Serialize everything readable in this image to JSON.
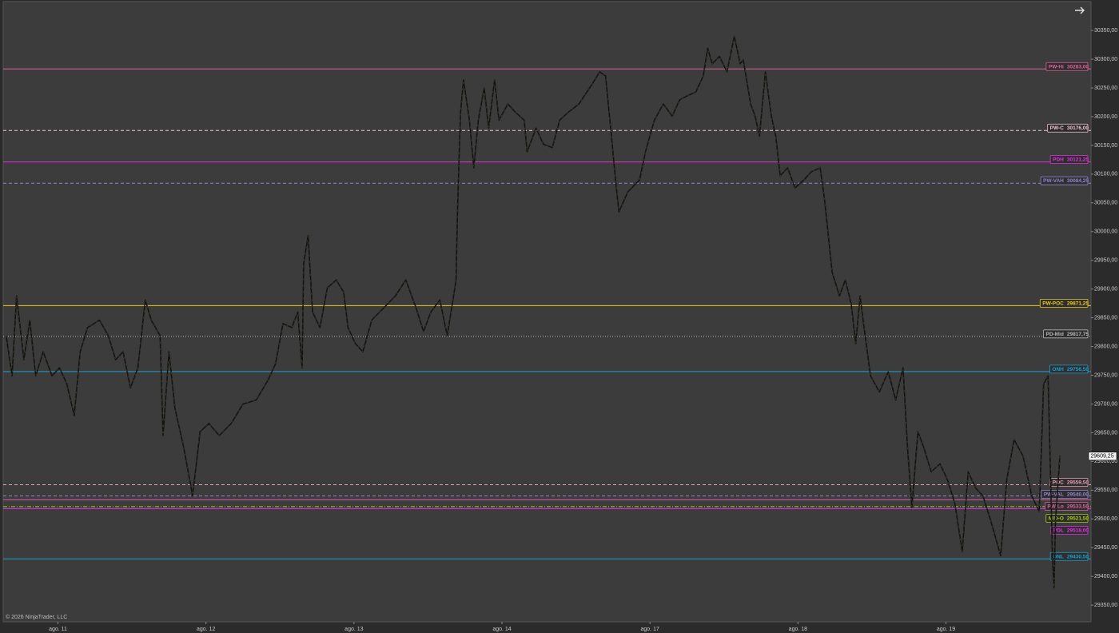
{
  "chart_data": {
    "type": "line",
    "copyright": "© 2026 NinjaTrader, LLC",
    "xlim": [
      -0.37,
      6.98
    ],
    "xticks": [
      {
        "value": 0,
        "label": "ago. 11"
      },
      {
        "value": 1,
        "label": "ago. 12"
      },
      {
        "value": 2,
        "label": "ago. 13"
      },
      {
        "value": 3,
        "label": "ago. 14"
      },
      {
        "value": 4,
        "label": "ago. 17"
      },
      {
        "value": 5,
        "label": "ago. 18"
      },
      {
        "value": 6,
        "label": "ago. 19"
      }
    ],
    "ylim": [
      29321,
      30403
    ],
    "yticks": [
      {
        "value": 29350,
        "label": "29350,00"
      },
      {
        "value": 29400,
        "label": "29400,00"
      },
      {
        "value": 29450,
        "label": "29450,00"
      },
      {
        "value": 29500,
        "label": "29500,00"
      },
      {
        "value": 29550,
        "label": "29550,00"
      },
      {
        "value": 29600,
        "label": "29600,00"
      },
      {
        "value": 29650,
        "label": "29650,00"
      },
      {
        "value": 29700,
        "label": "29700,00"
      },
      {
        "value": 29750,
        "label": "29750,00"
      },
      {
        "value": 29800,
        "label": "29800,00"
      },
      {
        "value": 29850,
        "label": "29850,00"
      },
      {
        "value": 29900,
        "label": "29900,00"
      },
      {
        "value": 29950,
        "label": "29950,00"
      },
      {
        "value": 30000,
        "label": "30000,00"
      },
      {
        "value": 30050,
        "label": "30050,00"
      },
      {
        "value": 30100,
        "label": "30100,00"
      },
      {
        "value": 30150,
        "label": "30150,00"
      },
      {
        "value": 30200,
        "label": "30200,00"
      },
      {
        "value": 30250,
        "label": "30250,00"
      },
      {
        "value": 30300,
        "label": "30300,00"
      },
      {
        "value": 30350,
        "label": "30350,00"
      }
    ],
    "grid": false,
    "series": [
      {
        "color": "#141414",
        "x": [
          -0.35,
          -0.31,
          -0.28,
          -0.23,
          -0.19,
          -0.15,
          -0.1,
          -0.04,
          0.01,
          0.06,
          0.11,
          0.15,
          0.2,
          0.28,
          0.34,
          0.39,
          0.44,
          0.49,
          0.54,
          0.59,
          0.63,
          0.69,
          0.71,
          0.75,
          0.79,
          0.85,
          0.91,
          0.96,
          1.02,
          1.09,
          1.17,
          1.25,
          1.34,
          1.42,
          1.47,
          1.52,
          1.58,
          1.62,
          1.65,
          1.66,
          1.69,
          1.72,
          1.77,
          1.82,
          1.88,
          1.93,
          1.96,
          2.01,
          2.06,
          2.12,
          2.2,
          2.28,
          2.35,
          2.42,
          2.47,
          2.52,
          2.58,
          2.63,
          2.66,
          2.69,
          2.7,
          2.71,
          2.72,
          2.74,
          2.78,
          2.81,
          2.84,
          2.88,
          2.91,
          2.95,
          2.98,
          3.04,
          3.09,
          3.15,
          3.17,
          3.23,
          3.28,
          3.34,
          3.39,
          3.45,
          3.52,
          3.61,
          3.66,
          3.7,
          3.74,
          3.77,
          3.79,
          3.85,
          3.93,
          3.97,
          4.03,
          4.09,
          4.15,
          4.2,
          4.25,
          4.31,
          4.36,
          4.39,
          4.42,
          4.47,
          4.52,
          4.57,
          4.61,
          4.63,
          4.68,
          4.71,
          4.74,
          4.78,
          4.82,
          4.85,
          4.88,
          4.93,
          4.98,
          5.04,
          5.09,
          5.15,
          5.18,
          5.23,
          5.28,
          5.32,
          5.36,
          5.39,
          5.42,
          5.44,
          5.49,
          5.55,
          5.61,
          5.66,
          5.71,
          5.74,
          5.77,
          5.81,
          5.85,
          5.9,
          5.96,
          6.01,
          6.06,
          6.11,
          6.15,
          6.2,
          6.25,
          6.3,
          6.37,
          6.41,
          6.46,
          6.52,
          6.58,
          6.63,
          6.66,
          6.69,
          6.72,
          6.73,
          6.74,
          6.77
        ],
        "values": [
          29819,
          29749,
          29888,
          29777,
          29846,
          29749,
          29791,
          29749,
          29763,
          29735,
          29680,
          29791,
          29833,
          29846,
          29819,
          29777,
          29791,
          29728,
          29763,
          29881,
          29846,
          29819,
          29645,
          29791,
          29693,
          29624,
          29540,
          29652,
          29666,
          29645,
          29666,
          29700,
          29707,
          29742,
          29770,
          29840,
          29833,
          29860,
          29763,
          29944,
          29993,
          29860,
          29833,
          29902,
          29916,
          29895,
          29833,
          29805,
          29791,
          29846,
          29867,
          29888,
          29916,
          29867,
          29826,
          29860,
          29881,
          29819,
          29867,
          29916,
          30041,
          30125,
          30208,
          30264,
          30194,
          30111,
          30194,
          30250,
          30180,
          30264,
          30194,
          30222,
          30208,
          30194,
          30139,
          30180,
          30152,
          30146,
          30194,
          30208,
          30222,
          30257,
          30278,
          30271,
          30166,
          30083,
          30034,
          30069,
          30090,
          30139,
          30194,
          30222,
          30201,
          30229,
          30236,
          30243,
          30271,
          30319,
          30292,
          30305,
          30278,
          30340,
          30292,
          30299,
          30222,
          30201,
          30166,
          30278,
          30201,
          30166,
          30097,
          30111,
          30076,
          30090,
          30104,
          30111,
          30055,
          29930,
          29888,
          29916,
          29874,
          29805,
          29888,
          29846,
          29749,
          29721,
          29756,
          29707,
          29763,
          29624,
          29520,
          29652,
          29624,
          29582,
          29596,
          29568,
          29527,
          29443,
          29582,
          29554,
          29540,
          29499,
          29436,
          29568,
          29638,
          29610,
          29540,
          29513,
          29735,
          29749,
          29429,
          29380,
          29499,
          29610
        ]
      }
    ],
    "last_price": {
      "value": 29609.25,
      "label": "29609,25"
    },
    "levels": [
      {
        "name": "PW-Hi",
        "value": 30283,
        "label": "30283,00",
        "color": "#e0609c",
        "dash": "solid"
      },
      {
        "name": "PW-C",
        "value": 30176,
        "label": "30176,00",
        "color": "#f0c4d4",
        "dash": "dashed"
      },
      {
        "name": "PDH",
        "value": 30121.25,
        "label": "30121,25",
        "color": "#e030e0",
        "dash": "solid"
      },
      {
        "name": "PW-VAH",
        "value": 30084.25,
        "label": "30084,25",
        "color": "#9484d0",
        "dash": "dashed"
      },
      {
        "name": "PW-POC",
        "value": 29871.25,
        "label": "29871,25",
        "color": "#e8c820",
        "dash": "solid"
      },
      {
        "name": "PD-Mid",
        "value": 29817.75,
        "label": "29817,75",
        "color": "#b4b4b4",
        "dash": "dotted"
      },
      {
        "name": "ONH",
        "value": 29756.5,
        "label": "29756,50",
        "color": "#1aa0d0",
        "dash": "solid"
      },
      {
        "name": "POC",
        "value": 29559.5,
        "label": "29559,50",
        "color": "#e8a0b8",
        "dash": "dashed"
      },
      {
        "name": "PW-Lo",
        "value": 29533.5,
        "label": "29533,50",
        "color": "#e060a0",
        "dash": "solid"
      },
      {
        "name": "PDL",
        "value": 29518,
        "label": "29518,00",
        "color": "#e030e0",
        "dash": "solid"
      },
      {
        "name": "PW-VAL",
        "value": 29540,
        "label": "29540,00",
        "color": "#9484d0",
        "dash": "dashed"
      },
      {
        "name": "MID-O",
        "value": 29521.5,
        "label": "29521,50",
        "color": "#a8c820",
        "dash": "dashdot"
      },
      {
        "name": "ONL",
        "value": 29430.5,
        "label": "29430,50",
        "color": "#1aa0d0",
        "dash": "solid"
      }
    ]
  }
}
